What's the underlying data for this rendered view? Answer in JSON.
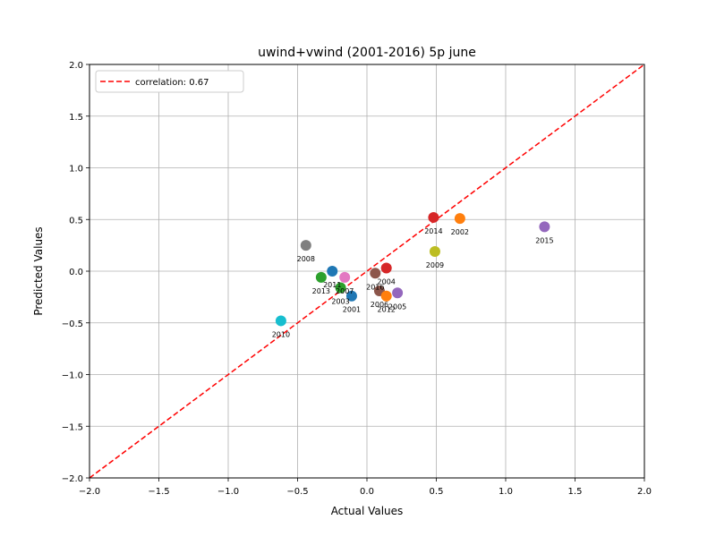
{
  "chart_data": {
    "type": "scatter",
    "title": "uwind+vwind (2001-2016) 5p june",
    "xlabel": "Actual Values",
    "ylabel": "Predicted Values",
    "xlim": [
      -2.0,
      2.0
    ],
    "ylim": [
      -2.0,
      2.0
    ],
    "xticks": [
      -2.0,
      -1.5,
      -1.0,
      -0.5,
      0.0,
      0.5,
      1.0,
      1.5,
      2.0
    ],
    "yticks": [
      -2.0,
      -1.5,
      -1.0,
      -0.5,
      0.0,
      0.5,
      1.0,
      1.5,
      2.0
    ],
    "xtick_labels": [
      "−2.0",
      "−1.5",
      "−1.0",
      "−0.5",
      "0.0",
      "0.5",
      "1.0",
      "1.5",
      "2.0"
    ],
    "ytick_labels": [
      "−2.0",
      "−1.5",
      "−1.0",
      "−0.5",
      "0.0",
      "0.5",
      "1.0",
      "1.5",
      "2.0"
    ],
    "grid": true,
    "legend": {
      "placement": "top-left",
      "label": "correlation: 0.67",
      "color": "#e41a1c",
      "style": "dashed"
    },
    "reference_line": {
      "from": [
        -2.0,
        -2.0
      ],
      "to": [
        2.0,
        2.0
      ],
      "color": "#ff0000"
    },
    "points": [
      {
        "label": "2001",
        "x": -0.11,
        "y": -0.24,
        "color": "#1f77b4"
      },
      {
        "label": "2002",
        "x": 0.67,
        "y": 0.51,
        "color": "#ff7f0e"
      },
      {
        "label": "2003",
        "x": -0.19,
        "y": -0.16,
        "color": "#2ca02c"
      },
      {
        "label": "2004",
        "x": 0.14,
        "y": 0.03,
        "color": "#d62728"
      },
      {
        "label": "2005",
        "x": 0.22,
        "y": -0.21,
        "color": "#9467bd"
      },
      {
        "label": "2006",
        "x": 0.09,
        "y": -0.19,
        "color": "#8c564b"
      },
      {
        "label": "2007",
        "x": -0.16,
        "y": -0.06,
        "color": "#e377c2"
      },
      {
        "label": "2008",
        "x": -0.44,
        "y": 0.25,
        "color": "#7f7f7f"
      },
      {
        "label": "2009",
        "x": 0.49,
        "y": 0.19,
        "color": "#bcbd22"
      },
      {
        "label": "2010",
        "x": -0.62,
        "y": -0.48,
        "color": "#17becf"
      },
      {
        "label": "2011",
        "x": -0.25,
        "y": 0.0,
        "color": "#1f77b4"
      },
      {
        "label": "2012",
        "x": 0.14,
        "y": -0.24,
        "color": "#ff7f0e"
      },
      {
        "label": "2013",
        "x": -0.33,
        "y": -0.06,
        "color": "#2ca02c"
      },
      {
        "label": "2014",
        "x": 0.48,
        "y": 0.52,
        "color": "#d62728"
      },
      {
        "label": "2015",
        "x": 1.28,
        "y": 0.43,
        "color": "#9467bd"
      },
      {
        "label": "2016",
        "x": 0.06,
        "y": -0.02,
        "color": "#8c564b"
      }
    ]
  }
}
